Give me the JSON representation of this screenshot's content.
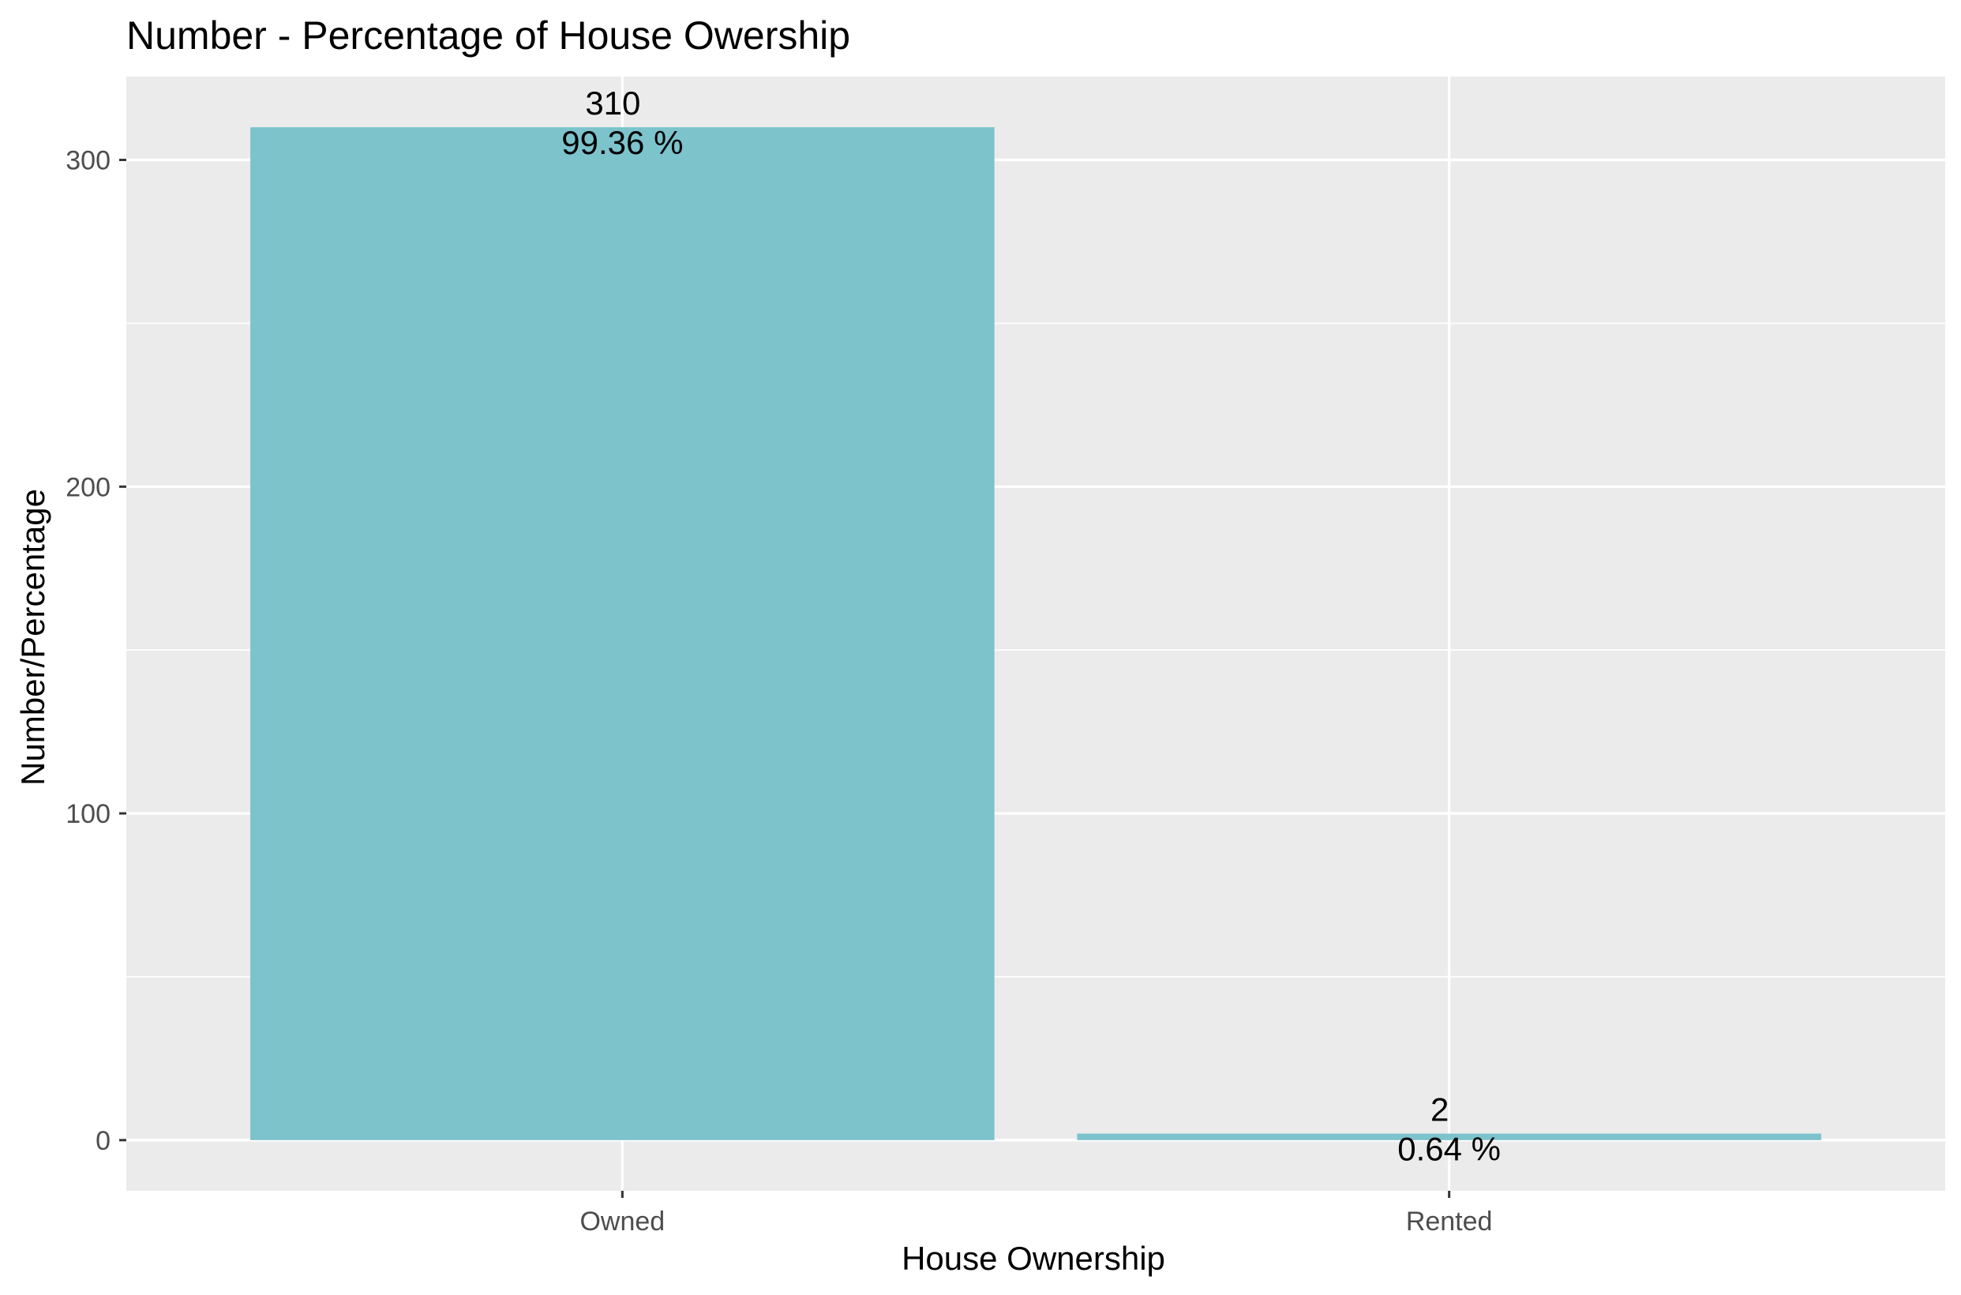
{
  "chart_data": {
    "type": "bar",
    "title": "Number - Percentage of House Owership",
    "xlabel": "House Ownership",
    "ylabel": "Number/Percentage",
    "categories": [
      "Owned",
      "Rented"
    ],
    "values": [
      310,
      2
    ],
    "value_labels": [
      "310",
      "2"
    ],
    "percent_labels": [
      "99.36 %",
      "0.64 %"
    ],
    "yticks": [
      0,
      100,
      200,
      300
    ],
    "ytick_labels": [
      "0",
      "100",
      "200",
      "300"
    ],
    "ylim": [
      -15.5,
      325.5
    ],
    "grid": true,
    "legend": "none",
    "colors": {
      "bar": "#7cc3cc",
      "panel": "#ebebeb",
      "grid": "#ffffff",
      "tick": "#333333"
    }
  }
}
